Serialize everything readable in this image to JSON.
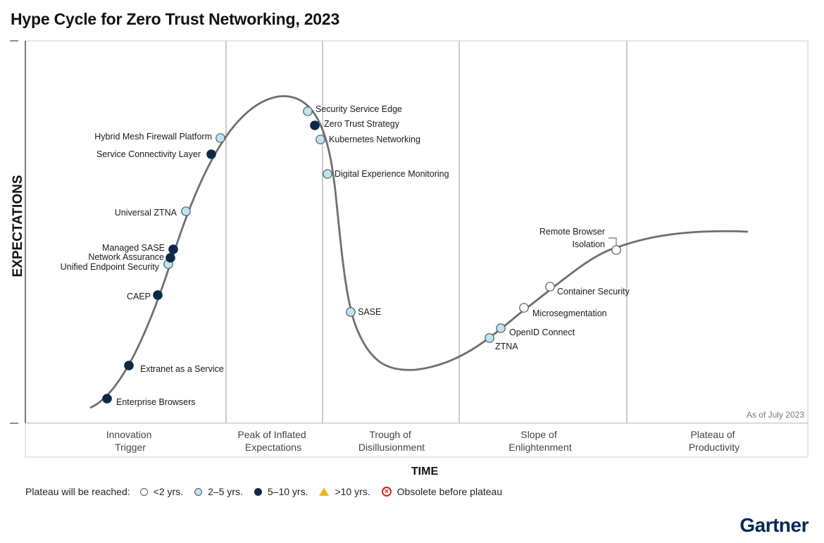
{
  "title": "Hype Cycle for Zero Trust Networking, 2023",
  "chart_data": {
    "type": "scatter",
    "title": "Hype Cycle for Zero Trust Networking, 2023",
    "xlabel": "TIME",
    "ylabel": "EXPECTATIONS",
    "annotation": "As of July 2023",
    "phases": [
      "Innovation Trigger",
      "Peak of Inflated Expectations",
      "Trough of Disillusionment",
      "Slope of Enlightenment",
      "Plateau of Productivity"
    ],
    "points": [
      {
        "name": "Enterprise Browsers",
        "category": "5-10"
      },
      {
        "name": "Extranet as a Service",
        "category": "5-10"
      },
      {
        "name": "CAEP",
        "category": "5-10"
      },
      {
        "name": "Unified Endpoint Security",
        "category": "2-5"
      },
      {
        "name": "Network Assurance",
        "category": "5-10"
      },
      {
        "name": "Managed SASE",
        "category": "5-10"
      },
      {
        "name": "Universal ZTNA",
        "category": "2-5"
      },
      {
        "name": "Service Connectivity Layer",
        "category": "5-10"
      },
      {
        "name": "Hybrid Mesh Firewall Platform",
        "category": "2-5"
      },
      {
        "name": "Security Service Edge",
        "category": "2-5"
      },
      {
        "name": "Zero Trust Strategy",
        "category": "5-10"
      },
      {
        "name": "Kubernetes Networking",
        "category": "2-5"
      },
      {
        "name": "Digital Experience Monitoring",
        "category": "2-5"
      },
      {
        "name": "SASE",
        "category": "2-5"
      },
      {
        "name": "ZTNA",
        "category": "2-5"
      },
      {
        "name": "OpenID Connect",
        "category": "2-5"
      },
      {
        "name": "Microsegmentation",
        "category": "<2"
      },
      {
        "name": "Container Security",
        "category": "<2"
      },
      {
        "name": "Remote Browser Isolation",
        "category": "<2"
      }
    ]
  },
  "legend": {
    "lead": "Plateau will be reached:",
    "items": [
      {
        "label": "<2 yrs.",
        "key": "<2",
        "color": "#ffffff"
      },
      {
        "label": "2–5 yrs.",
        "key": "2-5",
        "color": "#bfe3f2"
      },
      {
        "label": "5–10 yrs.",
        "key": "5-10",
        "color": "#0b2a4a"
      },
      {
        "label": ">10 yrs.",
        "key": ">10",
        "color": "#f2b51f"
      },
      {
        "label": "Obsolete before plateau",
        "key": "obsolete",
        "color": "#e02020"
      }
    ]
  },
  "brand": "Gartner"
}
